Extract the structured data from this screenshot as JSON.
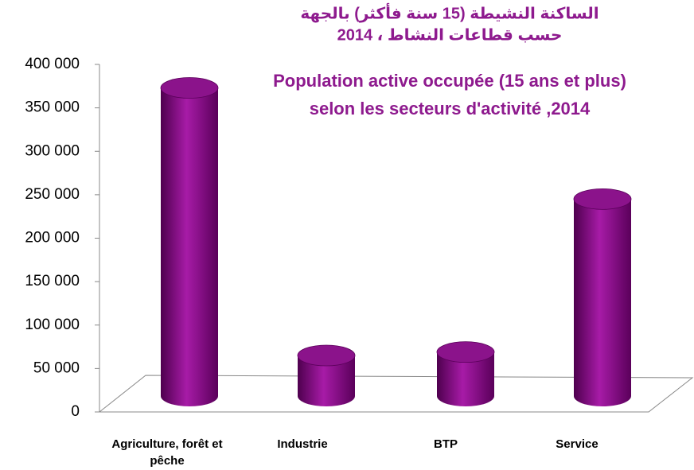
{
  "chart_data": {
    "type": "bar",
    "title": [
      "الساكنة النشيطة (15 سنة فأكثر) بالجهة",
      "حسب قطاعات النشاط ، 2014",
      "Population active occupée (15 ans et plus)",
      "selon les secteurs d'activité ,2014"
    ],
    "categories": [
      "Agriculture, forêt et pêche",
      "Industrie",
      "BTP",
      "Service"
    ],
    "values": [
      362000,
      54000,
      58000,
      234000
    ],
    "color": "#8b138b",
    "ylim": [
      0,
      400000
    ],
    "yticks": [
      0,
      {
        "value": 50000,
        "label": "50 000"
      },
      {
        "value": 100000,
        "label": "100 000"
      },
      {
        "value": 150000,
        "label": "150 000"
      },
      {
        "value": 200000,
        "label": "200 000"
      },
      {
        "value": 250000,
        "label": "250 000"
      },
      {
        "value": 300000,
        "label": "300 000"
      },
      {
        "value": 350000,
        "label": "350 000"
      },
      {
        "value": 400000,
        "label": "400 000"
      }
    ]
  }
}
